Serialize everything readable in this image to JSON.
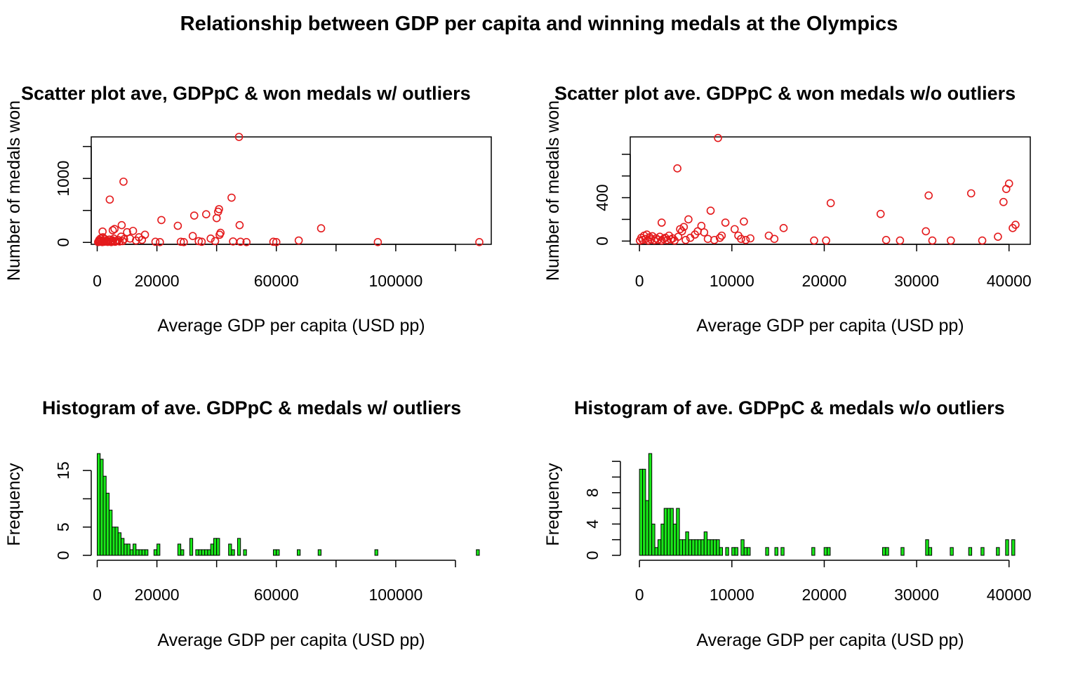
{
  "figure": {
    "title": "Relationship between GDP per capita and winning medals at the Olympics",
    "accent_colors": {
      "scatter_points": "#e41a1c",
      "histogram_bars": "#19e619",
      "axes": "#000000"
    }
  },
  "chart_data": [
    {
      "type": "scatter",
      "title": "Scatter plot ave, GDPpC & won medals w/ outliers",
      "xlabel": "Average GDP per capita (USD pp)",
      "ylabel": "Number of medals won",
      "xlim": [
        -2000,
        132000
      ],
      "ylim": [
        -30,
        1650
      ],
      "xticks": [
        0,
        20000,
        40000,
        60000,
        80000,
        100000,
        120000
      ],
      "xtick_labels": [
        "0",
        "20000",
        "",
        "60000",
        "",
        "100000",
        ""
      ],
      "yticks": [
        0,
        500,
        1000,
        1500
      ],
      "ytick_labels": [
        "0",
        "",
        "1000",
        ""
      ],
      "points": [
        [
          300,
          5
        ],
        [
          500,
          20
        ],
        [
          700,
          40
        ],
        [
          900,
          10
        ],
        [
          1100,
          60
        ],
        [
          1300,
          15
        ],
        [
          1500,
          30
        ],
        [
          1700,
          5
        ],
        [
          1900,
          80
        ],
        [
          2100,
          25
        ],
        [
          2300,
          10
        ],
        [
          2600,
          50
        ],
        [
          2900,
          15
        ],
        [
          3200,
          30
        ],
        [
          3500,
          8
        ],
        [
          3800,
          20
        ],
        [
          4100,
          45
        ],
        [
          4400,
          12
        ],
        [
          4700,
          5
        ],
        [
          5000,
          35
        ],
        [
          5300,
          18
        ],
        [
          5600,
          60
        ],
        [
          6000,
          10
        ],
        [
          6500,
          25
        ],
        [
          7000,
          40
        ],
        [
          7500,
          15
        ],
        [
          8000,
          90
        ],
        [
          8500,
          20
        ],
        [
          9000,
          50
        ],
        [
          1800,
          170
        ],
        [
          4200,
          670
        ],
        [
          5200,
          190
        ],
        [
          5800,
          210
        ],
        [
          8200,
          270
        ],
        [
          8800,
          950
        ],
        [
          10000,
          160
        ],
        [
          11000,
          60
        ],
        [
          12000,
          180
        ],
        [
          13000,
          30
        ],
        [
          14000,
          80
        ],
        [
          15000,
          40
        ],
        [
          16000,
          120
        ],
        [
          19500,
          10
        ],
        [
          21000,
          5
        ],
        [
          21500,
          350
        ],
        [
          27000,
          260
        ],
        [
          28000,
          10
        ],
        [
          29000,
          5
        ],
        [
          32000,
          100
        ],
        [
          32500,
          420
        ],
        [
          34000,
          20
        ],
        [
          35000,
          10
        ],
        [
          36500,
          440
        ],
        [
          38000,
          60
        ],
        [
          39500,
          20
        ],
        [
          40000,
          380
        ],
        [
          40500,
          480
        ],
        [
          40800,
          520
        ],
        [
          41000,
          120
        ],
        [
          41300,
          150
        ],
        [
          45000,
          700
        ],
        [
          45500,
          15
        ],
        [
          47500,
          1650
        ],
        [
          47700,
          270
        ],
        [
          48000,
          10
        ],
        [
          50000,
          5
        ],
        [
          59000,
          10
        ],
        [
          60000,
          5
        ],
        [
          67500,
          30
        ],
        [
          75000,
          220
        ],
        [
          94000,
          5
        ],
        [
          128000,
          5
        ]
      ]
    },
    {
      "type": "scatter",
      "title": "Scatter plot ave. GDPpC & won medals w/o outliers",
      "xlabel": "Average GDP per capita (USD pp)",
      "ylabel": "Number of medals won",
      "xlim": [
        -1000,
        42300
      ],
      "ylim": [
        -30,
        960
      ],
      "xticks": [
        0,
        10000,
        20000,
        30000,
        40000
      ],
      "xtick_labels": [
        "0",
        "10000",
        "20000",
        "30000",
        "40000"
      ],
      "yticks": [
        0,
        200,
        400,
        600,
        800
      ],
      "ytick_labels": [
        "0",
        "",
        "400",
        "",
        ""
      ],
      "points": [
        [
          50,
          5
        ],
        [
          200,
          30
        ],
        [
          350,
          10
        ],
        [
          500,
          50
        ],
        [
          650,
          20
        ],
        [
          800,
          60
        ],
        [
          950,
          5
        ],
        [
          1100,
          35
        ],
        [
          1250,
          15
        ],
        [
          1400,
          45
        ],
        [
          1600,
          8
        ],
        [
          1800,
          25
        ],
        [
          2000,
          12
        ],
        [
          2200,
          40
        ],
        [
          2400,
          5
        ],
        [
          2600,
          20
        ],
        [
          2800,
          30
        ],
        [
          3000,
          10
        ],
        [
          3200,
          50
        ],
        [
          3400,
          15
        ],
        [
          3600,
          25
        ],
        [
          3800,
          5
        ],
        [
          2400,
          170
        ],
        [
          4100,
          670
        ],
        [
          4200,
          40
        ],
        [
          4400,
          110
        ],
        [
          4600,
          90
        ],
        [
          4800,
          130
        ],
        [
          5000,
          10
        ],
        [
          5300,
          200
        ],
        [
          5500,
          30
        ],
        [
          6000,
          60
        ],
        [
          6300,
          90
        ],
        [
          6700,
          140
        ],
        [
          7000,
          80
        ],
        [
          7400,
          20
        ],
        [
          7700,
          280
        ],
        [
          8100,
          10
        ],
        [
          8500,
          950
        ],
        [
          8700,
          30
        ],
        [
          8900,
          50
        ],
        [
          9300,
          170
        ],
        [
          10300,
          110
        ],
        [
          10700,
          50
        ],
        [
          11000,
          20
        ],
        [
          11300,
          180
        ],
        [
          11500,
          10
        ],
        [
          12000,
          25
        ],
        [
          14000,
          50
        ],
        [
          14600,
          20
        ],
        [
          15600,
          120
        ],
        [
          18900,
          5
        ],
        [
          20200,
          5
        ],
        [
          20700,
          350
        ],
        [
          26100,
          250
        ],
        [
          26700,
          10
        ],
        [
          28200,
          5
        ],
        [
          31000,
          90
        ],
        [
          31300,
          420
        ],
        [
          31700,
          5
        ],
        [
          33700,
          5
        ],
        [
          35900,
          440
        ],
        [
          37100,
          5
        ],
        [
          38800,
          40
        ],
        [
          39400,
          360
        ],
        [
          39700,
          480
        ],
        [
          40000,
          530
        ],
        [
          40400,
          120
        ],
        [
          40700,
          150
        ]
      ]
    },
    {
      "type": "bar",
      "title": "Histogram of ave. GDPpC & medals w/ outliers",
      "xlabel": "Average GDP per capita (USD pp)",
      "ylabel": "Frequency",
      "xlim": [
        -2000,
        132000
      ],
      "ylim": [
        0,
        18
      ],
      "bin_width": 1000,
      "xticks": [
        0,
        20000,
        40000,
        60000,
        80000,
        100000,
        120000
      ],
      "xtick_labels": [
        "0",
        "20000",
        "",
        "60000",
        "",
        "100000",
        ""
      ],
      "yticks": [
        0,
        5,
        10,
        15
      ],
      "ytick_labels": [
        "0",
        "5",
        "",
        "15"
      ],
      "bins": [
        [
          0,
          18
        ],
        [
          1000,
          17
        ],
        [
          2000,
          14
        ],
        [
          3000,
          11
        ],
        [
          4000,
          8
        ],
        [
          5000,
          5
        ],
        [
          6000,
          5
        ],
        [
          7000,
          4
        ],
        [
          8000,
          3
        ],
        [
          9000,
          2
        ],
        [
          10000,
          2
        ],
        [
          11000,
          1
        ],
        [
          12000,
          2
        ],
        [
          13000,
          1
        ],
        [
          14000,
          1
        ],
        [
          15000,
          1
        ],
        [
          16000,
          1
        ],
        [
          19000,
          1
        ],
        [
          20000,
          2
        ],
        [
          27000,
          2
        ],
        [
          28000,
          1
        ],
        [
          31000,
          3
        ],
        [
          33000,
          1
        ],
        [
          34000,
          1
        ],
        [
          35000,
          1
        ],
        [
          36000,
          1
        ],
        [
          37000,
          1
        ],
        [
          38000,
          2
        ],
        [
          39000,
          3
        ],
        [
          40000,
          3
        ],
        [
          44000,
          2
        ],
        [
          45000,
          1
        ],
        [
          47000,
          3
        ],
        [
          49000,
          1
        ],
        [
          59000,
          1
        ],
        [
          60000,
          1
        ],
        [
          67000,
          1
        ],
        [
          74000,
          1
        ],
        [
          93000,
          1
        ],
        [
          127000,
          1
        ]
      ]
    },
    {
      "type": "bar",
      "title": "Histogram of ave. GDPpC & medals w/o outliers",
      "xlabel": "Average GDP per capita (USD pp)",
      "ylabel": "Frequency",
      "xlim": [
        -1000,
        42300
      ],
      "ylim": [
        0,
        13
      ],
      "bin_width": 333,
      "xticks": [
        0,
        10000,
        20000,
        30000,
        40000
      ],
      "xtick_labels": [
        "0",
        "10000",
        "20000",
        "30000",
        "40000"
      ],
      "yticks": [
        0,
        2,
        4,
        6,
        8,
        10,
        12
      ],
      "ytick_labels": [
        "0",
        "",
        "4",
        "",
        "8",
        "",
        ""
      ],
      "bins": [
        [
          0,
          11
        ],
        [
          333,
          11
        ],
        [
          666,
          7
        ],
        [
          999,
          13
        ],
        [
          1332,
          4
        ],
        [
          1665,
          1
        ],
        [
          1998,
          2
        ],
        [
          2331,
          4
        ],
        [
          2664,
          6
        ],
        [
          2997,
          6
        ],
        [
          3330,
          6
        ],
        [
          3663,
          4
        ],
        [
          3996,
          6
        ],
        [
          4329,
          2
        ],
        [
          4662,
          2
        ],
        [
          4995,
          3
        ],
        [
          5328,
          2
        ],
        [
          5661,
          2
        ],
        [
          5994,
          2
        ],
        [
          6327,
          2
        ],
        [
          6660,
          2
        ],
        [
          6993,
          3
        ],
        [
          7326,
          2
        ],
        [
          7659,
          2
        ],
        [
          7992,
          2
        ],
        [
          8325,
          2
        ],
        [
          8658,
          1
        ],
        [
          9324,
          1
        ],
        [
          9990,
          1
        ],
        [
          10323,
          1
        ],
        [
          10989,
          2
        ],
        [
          11322,
          1
        ],
        [
          11655,
          1
        ],
        [
          13653,
          1
        ],
        [
          14652,
          1
        ],
        [
          15318,
          1
        ],
        [
          18648,
          1
        ],
        [
          19980,
          1
        ],
        [
          20313,
          1
        ],
        [
          26307,
          1
        ],
        [
          26640,
          1
        ],
        [
          28305,
          1
        ],
        [
          30969,
          2
        ],
        [
          31302,
          1
        ],
        [
          33633,
          1
        ],
        [
          35631,
          1
        ],
        [
          36963,
          1
        ],
        [
          38628,
          1
        ],
        [
          39627,
          2
        ],
        [
          40293,
          2
        ]
      ]
    }
  ]
}
